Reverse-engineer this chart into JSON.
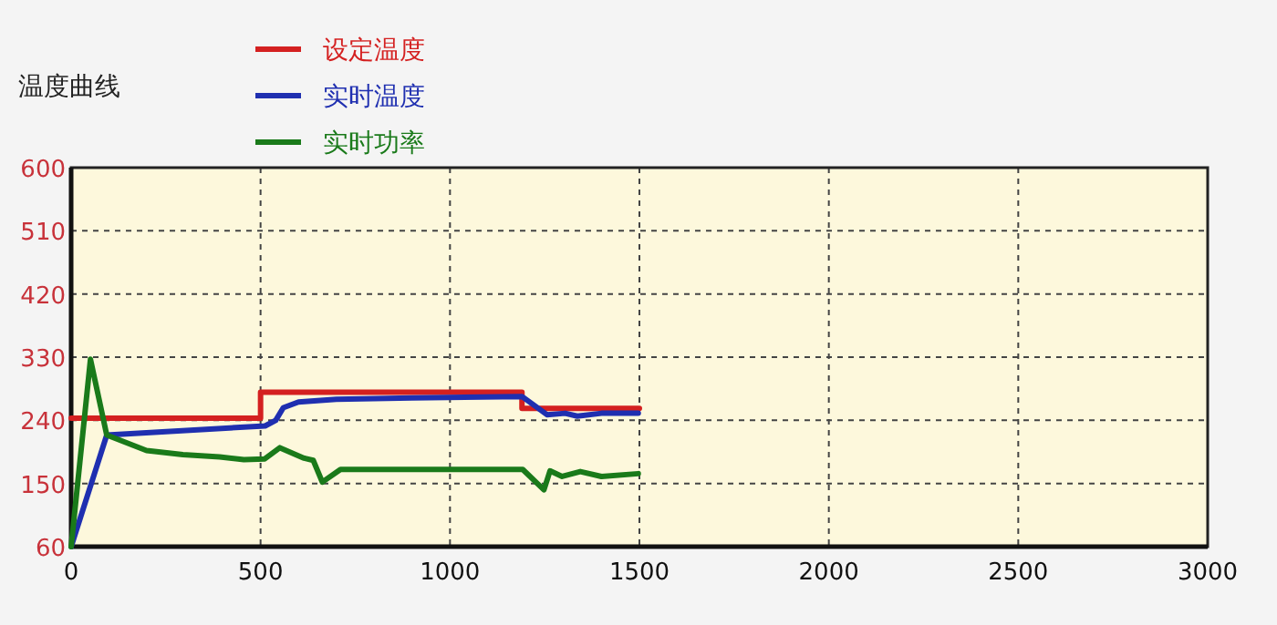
{
  "chart_data": {
    "type": "line",
    "title": "温度曲线",
    "xlim": [
      0,
      3000
    ],
    "xticks": [
      0,
      500,
      1000,
      1500,
      2000,
      2500,
      3000
    ],
    "ylim": [
      60,
      600
    ],
    "yticks": [
      60,
      150,
      240,
      330,
      420,
      510,
      600
    ],
    "grid": true,
    "legend": "top left",
    "series": [
      {
        "name": "设定温度",
        "color": "#d42020",
        "x": [
          0,
          500,
          500,
          1190,
          1190,
          1500
        ],
        "values": [
          243,
          243,
          280,
          280,
          257,
          257
        ]
      },
      {
        "name": "实时温度",
        "color": "#1f2fb0",
        "x": [
          0,
          94,
          512,
          540,
          560,
          600,
          700,
          900,
          1190,
          1256,
          1304,
          1336,
          1400,
          1497
        ],
        "values": [
          60,
          219,
          232,
          240,
          258,
          266,
          270,
          272,
          274,
          248,
          250,
          246,
          250,
          250
        ]
      },
      {
        "name": "实时功率",
        "color": "#1a7a1a",
        "x": [
          0,
          51,
          94,
          199,
          295,
          392,
          456,
          511,
          551,
          615,
          639,
          663,
          711,
          1192,
          1248,
          1264,
          1296,
          1344,
          1400,
          1497
        ],
        "values": [
          60,
          327,
          219,
          197,
          191,
          188,
          184,
          185,
          201,
          186,
          183,
          152,
          170,
          170,
          141,
          168,
          160,
          167,
          160,
          164
        ]
      }
    ]
  }
}
